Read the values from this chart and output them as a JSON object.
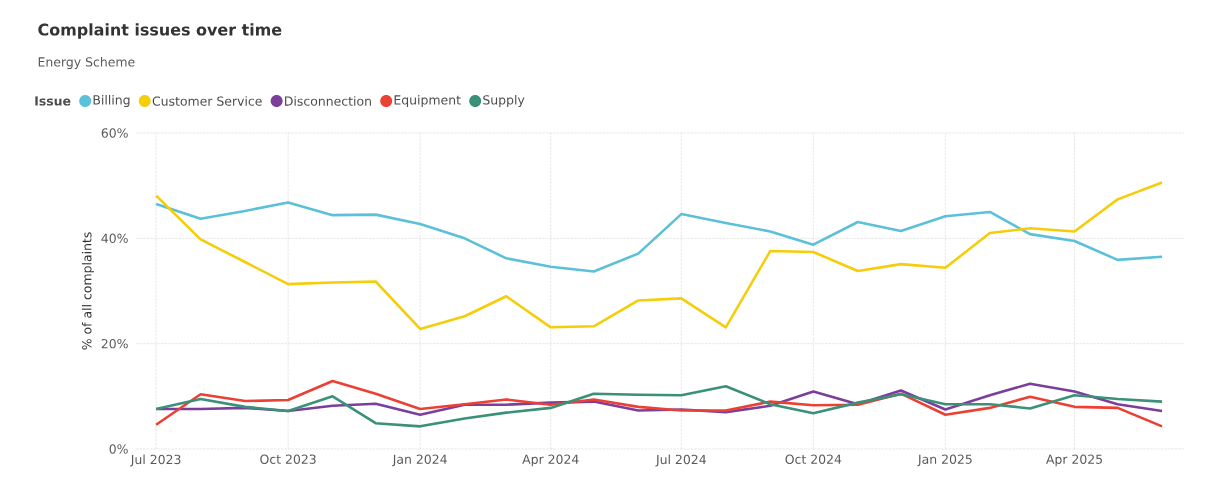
{
  "chart_data": {
    "type": "line",
    "title": "Complaint issues over time",
    "subtitle": "Energy Scheme",
    "legend_title": "Issue",
    "ylabel": "% of all complaints",
    "legend": "top left",
    "grid": true,
    "line_style": "solid",
    "marker": "none",
    "x": [
      "2023-07",
      "2023-08",
      "2023-09",
      "2023-10",
      "2023-11",
      "2023-12",
      "2024-01",
      "2024-02",
      "2024-03",
      "2024-04",
      "2024-05",
      "2024-06",
      "2024-07",
      "2024-08",
      "2024-09",
      "2024-10",
      "2024-11",
      "2024-12",
      "2025-01",
      "2025-02",
      "2025-03",
      "2025-04",
      "2025-05",
      "2025-06"
    ],
    "xlim": [
      "2023-06-17",
      "2025-06-17"
    ],
    "xticks": [
      {
        "value": "2023-07",
        "label": "Jul 2023"
      },
      {
        "value": "2023-10",
        "label": "Oct 2023"
      },
      {
        "value": "2024-01",
        "label": "Jan 2024"
      },
      {
        "value": "2024-04",
        "label": "Apr 2024"
      },
      {
        "value": "2024-07",
        "label": "Jul 2024"
      },
      {
        "value": "2024-10",
        "label": "Oct 2024"
      },
      {
        "value": "2025-01",
        "label": "Jan 2025"
      },
      {
        "value": "2025-04",
        "label": "Apr 2025"
      }
    ],
    "ylim": [
      0,
      60
    ],
    "yticks": [
      {
        "value": 0,
        "label": "0%"
      },
      {
        "value": 20,
        "label": "20%"
      },
      {
        "value": 40,
        "label": "40%"
      },
      {
        "value": 60,
        "label": "60%"
      }
    ],
    "series": [
      {
        "name": "Billing",
        "color": "#5bc0d8",
        "values": [
          46.5,
          43.7,
          45.2,
          46.8,
          44.4,
          44.5,
          42.7,
          40.0,
          36.2,
          34.6,
          33.7,
          37.1,
          44.6,
          42.9,
          41.3,
          38.8,
          43.1,
          41.4,
          44.2,
          45.0,
          40.8,
          39.5,
          35.9,
          36.5
        ]
      },
      {
        "name": "Customer Service",
        "color": "#f5cd0a",
        "values": [
          48.1,
          39.8,
          35.5,
          31.3,
          31.6,
          31.8,
          22.8,
          25.2,
          29.0,
          23.1,
          23.3,
          28.2,
          28.6,
          23.1,
          37.6,
          37.4,
          33.8,
          35.1,
          34.4,
          41.0,
          41.9,
          41.3,
          47.4,
          50.6
        ]
      },
      {
        "name": "Disconnection",
        "color": "#7b3f9b",
        "values": [
          7.6,
          7.6,
          7.8,
          7.2,
          8.2,
          8.6,
          6.5,
          8.4,
          8.4,
          8.8,
          9.0,
          7.3,
          7.5,
          7.0,
          8.2,
          10.9,
          8.5,
          11.1,
          7.5,
          10.2,
          12.4,
          10.9,
          8.5,
          7.2
        ]
      },
      {
        "name": "Equipment",
        "color": "#eb4034",
        "values": [
          4.6,
          10.4,
          9.1,
          9.3,
          12.9,
          10.5,
          7.6,
          8.5,
          9.4,
          8.4,
          9.4,
          8.0,
          7.3,
          7.3,
          9.0,
          8.3,
          8.4,
          10.5,
          6.5,
          7.8,
          9.9,
          8.0,
          7.8,
          4.3
        ]
      },
      {
        "name": "Supply",
        "color": "#3a9078",
        "values": [
          7.6,
          9.5,
          8.0,
          7.2,
          10.0,
          4.9,
          4.3,
          5.8,
          6.9,
          7.8,
          10.5,
          10.3,
          10.2,
          11.9,
          8.5,
          6.8,
          8.8,
          10.4,
          8.5,
          8.5,
          7.7,
          10.2,
          9.5,
          9.0
        ]
      }
    ]
  }
}
